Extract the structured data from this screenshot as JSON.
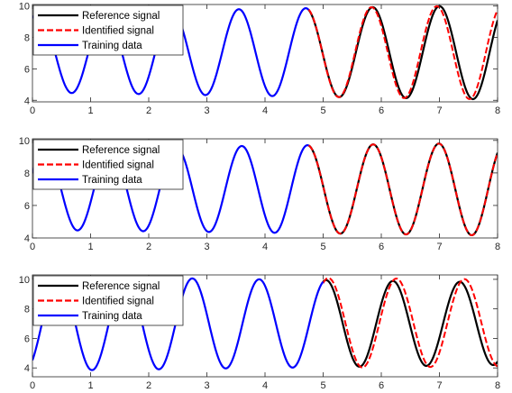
{
  "legend_entries": [
    "Reference signal",
    "Identified signal",
    "Training data"
  ],
  "colors": {
    "reference": "#000000",
    "identified": "#ff0000",
    "training": "#0000ff",
    "axes": "#262626"
  },
  "chart_data": [
    {
      "type": "line",
      "xlim": [
        0,
        8
      ],
      "ylim": [
        3.9,
        10.1
      ],
      "xticks": [
        0,
        1,
        2,
        3,
        4,
        5,
        6,
        7,
        8
      ],
      "yticks": [
        4,
        6,
        8,
        10
      ],
      "legend_position": "top-left",
      "grid": false,
      "split_x": 4.75,
      "series": [
        {
          "name": "Reference signal",
          "model": {
            "offset": 7.05,
            "amp_start": 2.55,
            "amp_end": 3.0,
            "period": 1.15,
            "peak_x": 3.55
          }
        },
        {
          "name": "Identified signal",
          "model": {
            "offset": 7.05,
            "amp_start": 2.55,
            "amp_end": 3.0,
            "period": 1.125,
            "peak_x": 3.58
          }
        },
        {
          "name": "Training data",
          "model": {
            "offset": 7.05,
            "amp_start": 2.55,
            "amp_end": 3.0,
            "period": 1.15,
            "peak_x": 3.55
          }
        }
      ]
    },
    {
      "type": "line",
      "xlim": [
        0,
        8
      ],
      "ylim": [
        4.0,
        10.1
      ],
      "xticks": [
        0,
        1,
        2,
        3,
        4,
        5,
        6,
        7,
        8
      ],
      "yticks": [
        4,
        6,
        8,
        10
      ],
      "legend_position": "top-left",
      "grid": false,
      "split_x": 4.75,
      "series": [
        {
          "name": "Reference signal",
          "model": {
            "offset": 7.0,
            "amp_start": 2.5,
            "amp_end": 2.85,
            "period": 1.13,
            "peak_x": 3.6
          }
        },
        {
          "name": "Identified signal",
          "model": {
            "offset": 7.0,
            "amp_start": 2.5,
            "amp_end": 2.85,
            "period": 1.13,
            "peak_x": 3.6
          }
        },
        {
          "name": "Training data",
          "model": {
            "offset": 7.0,
            "amp_start": 2.5,
            "amp_end": 2.85,
            "period": 1.13,
            "peak_x": 3.6
          }
        }
      ]
    },
    {
      "type": "line",
      "xlim": [
        0,
        8
      ],
      "ylim": [
        3.4,
        10.3
      ],
      "xticks": [
        0,
        1,
        2,
        3,
        4,
        5,
        6,
        7,
        8
      ],
      "yticks": [
        4,
        6,
        8,
        10
      ],
      "legend_position": "top-left",
      "grid": false,
      "split_x": 5.0,
      "series": [
        {
          "name": "Reference signal",
          "model": {
            "offset": 7.0,
            "amp_start": 3.2,
            "amp_end": 2.8,
            "period": 1.15,
            "peak_x": 2.75
          }
        },
        {
          "name": "Identified signal",
          "model": {
            "offset": 7.05,
            "amp_start": 3.2,
            "amp_end": 2.95,
            "period": 1.17,
            "peak_x": 2.75
          }
        },
        {
          "name": "Training data",
          "model": {
            "offset": 7.0,
            "amp_start": 3.2,
            "amp_end": 2.8,
            "period": 1.15,
            "peak_x": 2.75
          }
        }
      ]
    }
  ]
}
